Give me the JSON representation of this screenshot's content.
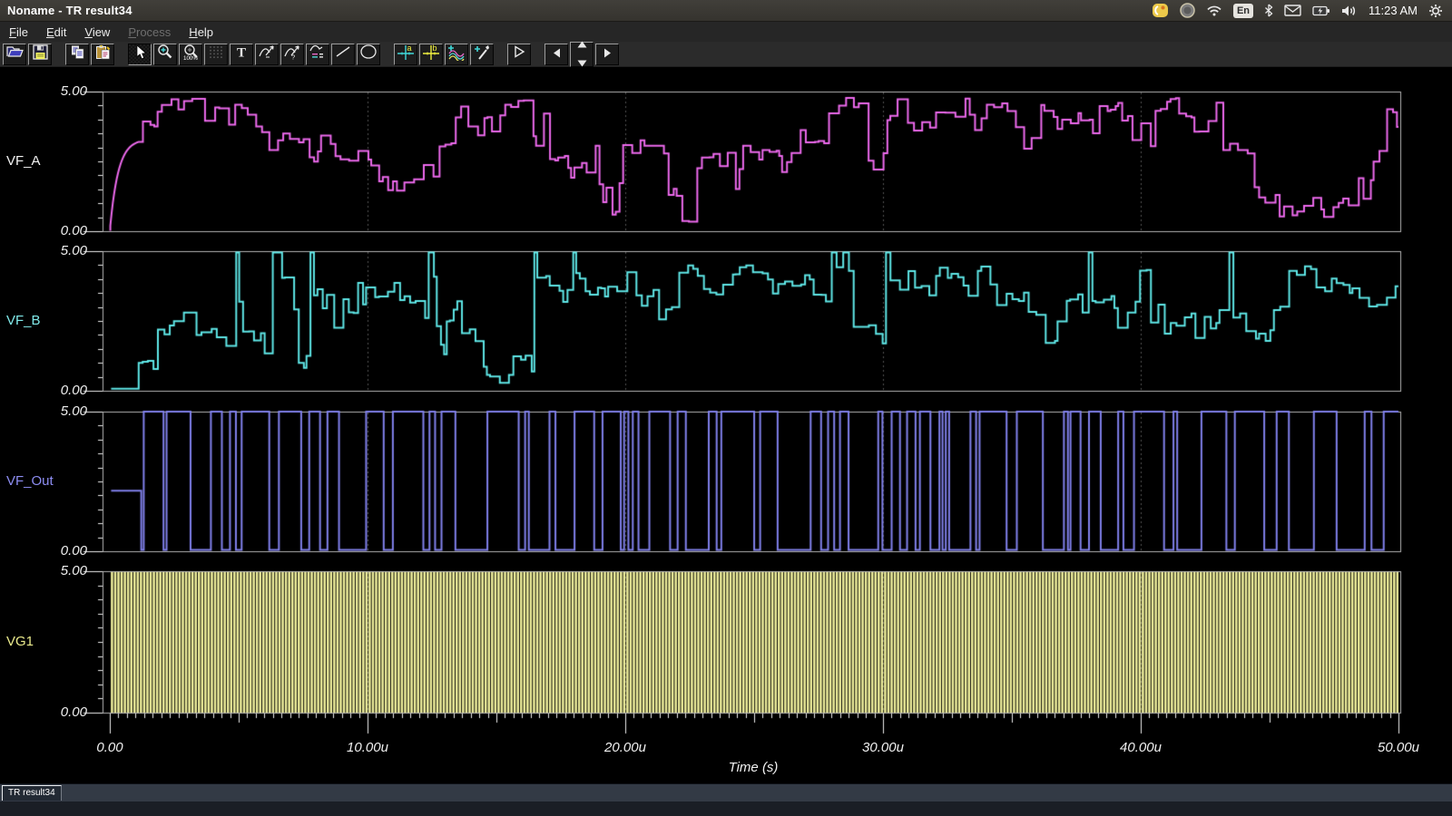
{
  "titlebar": {
    "title": "Noname - TR result34",
    "tray": {
      "keyboard_layout": "En",
      "clock": "11:23 AM",
      "icons": [
        "app-yellow-icon",
        "indicator-circle-icon",
        "wifi-icon",
        "keyboard-layout",
        "bluetooth-icon",
        "mail-icon",
        "battery-icon",
        "volume-icon",
        "clock",
        "session-gear-icon"
      ]
    }
  },
  "menubar": {
    "items": [
      {
        "label": "File"
      },
      {
        "label": "Edit"
      },
      {
        "label": "View"
      },
      {
        "label": "Process",
        "disabled": true
      },
      {
        "label": "Help"
      }
    ]
  },
  "toolbar": {
    "buttons": [
      "open",
      "save",
      "copy",
      "paste",
      "cursor",
      "zoom-in",
      "zoom-100",
      "grid",
      "text",
      "annotate-curve-1",
      "annotate-curve-2",
      "legend",
      "line",
      "ellipse",
      "axis-a",
      "axis-b",
      "add-curves",
      "probe",
      "run",
      "nav-prev",
      "nav-spinner",
      "nav-next"
    ],
    "glyphs": {
      "text_tool": "T",
      "axis_a": "a",
      "axis_b": "b",
      "zoom_100": "100%"
    }
  },
  "plots": {
    "time_axis": {
      "title": "Time (s)",
      "tick_labels": [
        "0.00",
        "10.00u",
        "20.00u",
        "30.00u",
        "40.00u",
        "50.00u"
      ],
      "t_start_us": 0,
      "t_end_us": 50
    },
    "grid_color": "#525252",
    "frame_color": "#b4b4b4",
    "tick_color": "#ececec",
    "panels": [
      {
        "name": "VF_A",
        "name_color": "#f2f2f2",
        "curve_color": "#ee6aee",
        "y_top": "5.00",
        "y_bottom": "0.00",
        "y_max_v": 5,
        "y_min_v": 0,
        "signal": {
          "kind": "staircase",
          "seed": 987654321,
          "start_us": 1.15,
          "startup": "exp-rise",
          "startup_level": 3.3,
          "min_v": 0.33,
          "max_v": 4.78,
          "spike_p": 0,
          "spike_v": 0
        }
      },
      {
        "name": "VF_B",
        "name_color": "#80e9e9",
        "curve_color": "#5fe8e8",
        "y_top": "5.00",
        "y_bottom": "0.00",
        "y_max_v": 5,
        "y_min_v": 0,
        "signal": {
          "kind": "staircase",
          "seed": 123456789,
          "start_us": 1.12,
          "startup": "flat-low",
          "startup_level": 1.0,
          "min_v": 0.28,
          "max_v": 4.5,
          "spike_p": 0.045,
          "spike_v": 4.95
        }
      },
      {
        "name": "VF_Out",
        "name_color": "#8d8df2",
        "curve_color": "#8181ec",
        "y_top": "5.00",
        "y_bottom": "0.00",
        "y_max_v": 5,
        "y_min_v": 0,
        "signal": {
          "kind": "random-digital",
          "seed": 555888222,
          "start_us": 1.22,
          "startup_level": 2.17,
          "low_v": 0.05,
          "high_v": 5.0
        }
      },
      {
        "name": "VG1",
        "name_color": "#eaea8c",
        "curve_color": "#f0f09c",
        "y_top": "5.00",
        "y_bottom": "0.00",
        "y_max_v": 5,
        "y_min_v": 0,
        "signal": {
          "kind": "clock",
          "period_us": 0.125,
          "duty": 0.72,
          "low_v": 0,
          "high_v": 5.0
        }
      }
    ]
  },
  "statusbar": {
    "tab_label": "TR result34"
  }
}
